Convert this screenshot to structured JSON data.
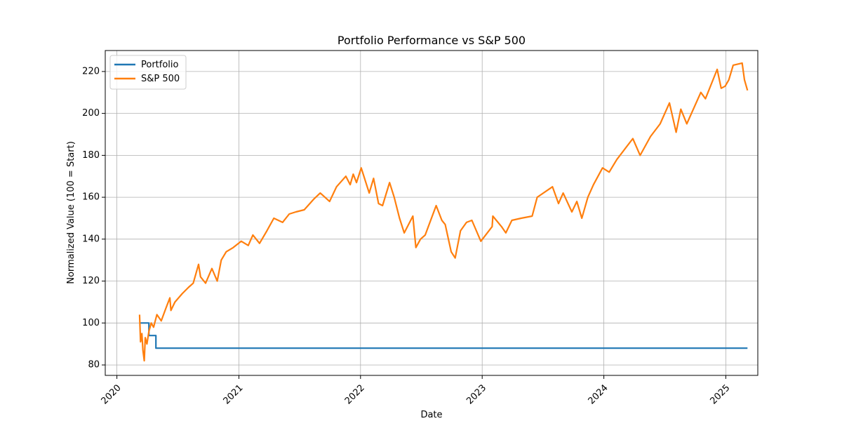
{
  "chart_data": {
    "type": "line",
    "title": "Portfolio Performance vs S&P 500",
    "xlabel": "Date",
    "ylabel": "Normalized Value (100 = Start)",
    "xlim": [
      "2019-11-27",
      "2025-04-07"
    ],
    "ylim": [
      75,
      230
    ],
    "x_ticks": [
      "2020-01-01",
      "2021-01-01",
      "2022-01-01",
      "2023-01-01",
      "2024-01-01",
      "2025-01-01"
    ],
    "x_tick_labels": [
      "2020",
      "2021",
      "2022",
      "2023",
      "2024",
      "2025"
    ],
    "y_ticks": [
      80,
      100,
      120,
      140,
      160,
      180,
      200,
      220
    ],
    "y_tick_labels": [
      "80",
      "100",
      "120",
      "140",
      "160",
      "180",
      "200",
      "220"
    ],
    "grid": true,
    "legend_position": "top-left",
    "series": [
      {
        "name": "Portfolio",
        "color": "#1f77b4",
        "step": true,
        "points": [
          [
            "2020-03-09",
            100
          ],
          [
            "2020-04-06",
            94
          ],
          [
            "2020-04-27",
            88
          ],
          [
            "2025-03-07",
            88
          ]
        ]
      },
      {
        "name": "S&P 500",
        "color": "#ff7f0e",
        "points": [
          [
            "2020-03-09",
            104
          ],
          [
            "2020-03-12",
            91
          ],
          [
            "2020-03-16",
            95
          ],
          [
            "2020-03-19",
            87
          ],
          [
            "2020-03-23",
            82
          ],
          [
            "2020-03-26",
            93
          ],
          [
            "2020-03-31",
            90
          ],
          [
            "2020-04-06",
            96
          ],
          [
            "2020-04-13",
            100
          ],
          [
            "2020-04-20",
            98
          ],
          [
            "2020-04-30",
            104
          ],
          [
            "2020-05-13",
            101
          ],
          [
            "2020-05-27",
            107
          ],
          [
            "2020-06-08",
            112
          ],
          [
            "2020-06-11",
            106
          ],
          [
            "2020-06-23",
            110
          ],
          [
            "2020-07-15",
            114
          ],
          [
            "2020-08-03",
            117
          ],
          [
            "2020-08-17",
            119
          ],
          [
            "2020-09-02",
            128
          ],
          [
            "2020-09-08",
            122
          ],
          [
            "2020-09-23",
            119
          ],
          [
            "2020-10-12",
            126
          ],
          [
            "2020-10-28",
            120
          ],
          [
            "2020-11-09",
            130
          ],
          [
            "2020-11-24",
            134
          ],
          [
            "2020-12-15",
            136
          ],
          [
            "2021-01-08",
            139
          ],
          [
            "2021-01-29",
            137
          ],
          [
            "2021-02-12",
            142
          ],
          [
            "2021-03-04",
            138
          ],
          [
            "2021-03-26",
            144
          ],
          [
            "2021-04-16",
            150
          ],
          [
            "2021-05-12",
            148
          ],
          [
            "2021-06-01",
            152
          ],
          [
            "2021-06-21",
            153
          ],
          [
            "2021-07-16",
            154
          ],
          [
            "2021-08-13",
            159
          ],
          [
            "2021-09-02",
            162
          ],
          [
            "2021-09-30",
            158
          ],
          [
            "2021-10-21",
            165
          ],
          [
            "2021-11-18",
            170
          ],
          [
            "2021-12-01",
            166
          ],
          [
            "2021-12-10",
            171
          ],
          [
            "2021-12-20",
            167
          ],
          [
            "2022-01-03",
            174
          ],
          [
            "2022-01-19",
            166
          ],
          [
            "2022-01-27",
            162
          ],
          [
            "2022-02-09",
            169
          ],
          [
            "2022-02-24",
            157
          ],
          [
            "2022-03-08",
            156
          ],
          [
            "2022-03-29",
            167
          ],
          [
            "2022-04-12",
            160
          ],
          [
            "2022-04-28",
            150
          ],
          [
            "2022-05-12",
            143
          ],
          [
            "2022-06-07",
            151
          ],
          [
            "2022-06-16",
            136
          ],
          [
            "2022-06-30",
            140
          ],
          [
            "2022-07-14",
            142
          ],
          [
            "2022-08-16",
            156
          ],
          [
            "2022-09-02",
            149
          ],
          [
            "2022-09-12",
            147
          ],
          [
            "2022-09-30",
            134
          ],
          [
            "2022-10-12",
            131
          ],
          [
            "2022-10-28",
            144
          ],
          [
            "2022-11-15",
            148
          ],
          [
            "2022-12-01",
            149
          ],
          [
            "2022-12-28",
            139
          ],
          [
            "2023-01-31",
            146
          ],
          [
            "2023-02-02",
            151
          ],
          [
            "2023-02-28",
            146
          ],
          [
            "2023-03-13",
            143
          ],
          [
            "2023-03-31",
            149
          ],
          [
            "2023-04-28",
            150
          ],
          [
            "2023-05-31",
            151
          ],
          [
            "2023-06-15",
            160
          ],
          [
            "2023-07-31",
            165
          ],
          [
            "2023-08-18",
            157
          ],
          [
            "2023-09-01",
            162
          ],
          [
            "2023-09-27",
            153
          ],
          [
            "2023-10-12",
            158
          ],
          [
            "2023-10-27",
            150
          ],
          [
            "2023-11-14",
            160
          ],
          [
            "2023-12-01",
            166
          ],
          [
            "2023-12-28",
            174
          ],
          [
            "2024-01-17",
            172
          ],
          [
            "2024-02-09",
            178
          ],
          [
            "2024-03-28",
            188
          ],
          [
            "2024-04-19",
            180
          ],
          [
            "2024-05-20",
            189
          ],
          [
            "2024-06-18",
            195
          ],
          [
            "2024-07-16",
            205
          ],
          [
            "2024-08-05",
            191
          ],
          [
            "2024-08-19",
            202
          ],
          [
            "2024-09-06",
            195
          ],
          [
            "2024-10-18",
            210
          ],
          [
            "2024-11-01",
            207
          ],
          [
            "2024-12-06",
            221
          ],
          [
            "2024-12-18",
            212
          ],
          [
            "2024-12-30",
            213
          ],
          [
            "2025-01-10",
            216
          ],
          [
            "2025-01-23",
            223
          ],
          [
            "2025-02-19",
            224
          ],
          [
            "2025-02-26",
            216
          ],
          [
            "2025-03-07",
            211
          ]
        ]
      }
    ]
  }
}
